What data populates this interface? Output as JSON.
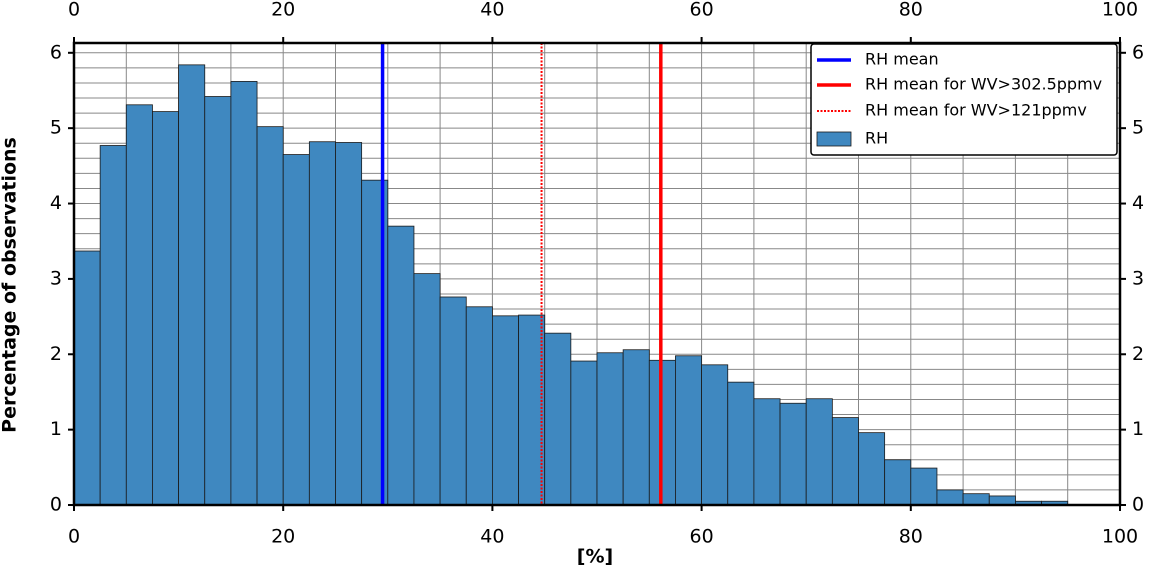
{
  "chart_data": {
    "type": "histogram",
    "xlabel": "[%]",
    "ylabel": "Percentage of observations",
    "bins": [
      0,
      2.5,
      5,
      7.5,
      10,
      12.5,
      15,
      17.5,
      20,
      22.5,
      25,
      27.5,
      30,
      32.5,
      35,
      37.5,
      40,
      42.5,
      45,
      47.5,
      50,
      52.5,
      55,
      57.5,
      60,
      62.5,
      65,
      67.5,
      70,
      72.5,
      75,
      77.5,
      80,
      82.5,
      85,
      87.5,
      90,
      92.5,
      95
    ],
    "series": [
      {
        "name": "RH",
        "color": "#3f88c0",
        "values": [
          3.37,
          4.77,
          5.31,
          5.22,
          5.84,
          5.42,
          5.62,
          5.02,
          4.65,
          4.82,
          4.81,
          4.31,
          3.7,
          3.07,
          2.76,
          2.63,
          2.51,
          2.52,
          2.28,
          1.91,
          2.02,
          2.06,
          1.92,
          1.98,
          1.86,
          1.63,
          1.41,
          1.35,
          1.41,
          1.16,
          0.96,
          0.6,
          0.49,
          0.2,
          0.15,
          0.12,
          0.05,
          0.05
        ]
      }
    ],
    "vlines": [
      {
        "name": "RH mean",
        "color": "#0000ff",
        "style": "solid",
        "value": 29.5
      },
      {
        "name": "RH mean for WV>302.5ppmv",
        "color": "#ff0000",
        "style": "solid",
        "value": 56.1
      },
      {
        "name": "RH mean for WV>121ppmv",
        "color": "#ff0000",
        "style": "dotted",
        "value": 44.7
      }
    ],
    "xlim": [
      0,
      100
    ],
    "xticks": [
      0,
      20,
      40,
      60,
      80,
      100
    ],
    "ylim": [
      0,
      6.13
    ],
    "yticks": [
      0,
      1,
      2,
      3,
      4,
      5,
      6
    ],
    "grid": true,
    "legend": "upper right"
  }
}
